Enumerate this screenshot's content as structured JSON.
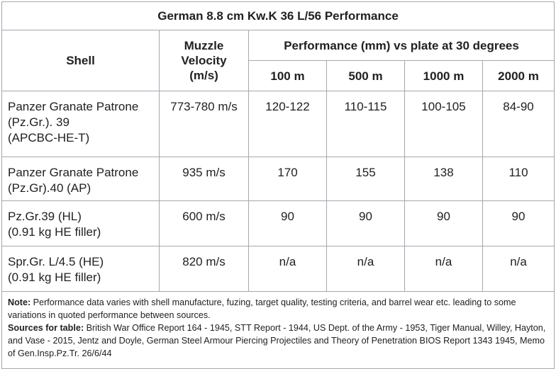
{
  "title": "German 8.8 cm Kw.K 36 L/56 Performance",
  "headers": {
    "shell": "Shell",
    "muzzle_velocity": [
      "Muzzle",
      "Velocity",
      "(m/s)"
    ],
    "performance": "Performance (mm) vs plate at 30 degrees",
    "ranges": [
      "100 m",
      "500 m",
      "1000 m",
      "2000 m"
    ]
  },
  "rows": [
    {
      "shell": [
        "Panzer Granate Patrone",
        "(Pz.Gr.). 39",
        "(APCBC-HE-T)"
      ],
      "velocity": "773-780 m/s",
      "perf": [
        "120-122",
        "110-115",
        "100-105",
        "84-90"
      ]
    },
    {
      "shell": [
        "Panzer Granate Patrone",
        "(Pz.Gr).40 (AP)"
      ],
      "velocity": "935 m/s",
      "perf": [
        "170",
        "155",
        "138",
        "110"
      ]
    },
    {
      "shell": [
        "Pz.Gr.39 (HL)",
        "(0.91 kg HE filler)"
      ],
      "velocity": "600 m/s",
      "perf": [
        "90",
        "90",
        "90",
        "90"
      ]
    },
    {
      "shell": [
        "Spr.Gr. L/4.5 (HE)",
        "(0.91 kg HE filler)"
      ],
      "velocity": "820 m/s",
      "perf": [
        "n/a",
        "n/a",
        "n/a",
        "n/a"
      ]
    }
  ],
  "note": {
    "label": "Note:",
    "text": " Performance data varies with shell manufacture, fuzing, target quality, testing criteria, and barrel wear etc. leading to some variations in quoted performance between sources.",
    "sources_label": "Sources for table:",
    "sources_text": " British War Office Report 164 - 1945, STT Report - 1944, US Dept. of the Army - 1953, Tiger Manual, Willey, Hayton, and Vase - 2015, Jentz and Doyle, German Steel Armour Piercing Projectiles and Theory of Penetration BIOS Report 1343 1945, Memo of Gen.Insp.Pz.Tr. 26/6/44"
  }
}
